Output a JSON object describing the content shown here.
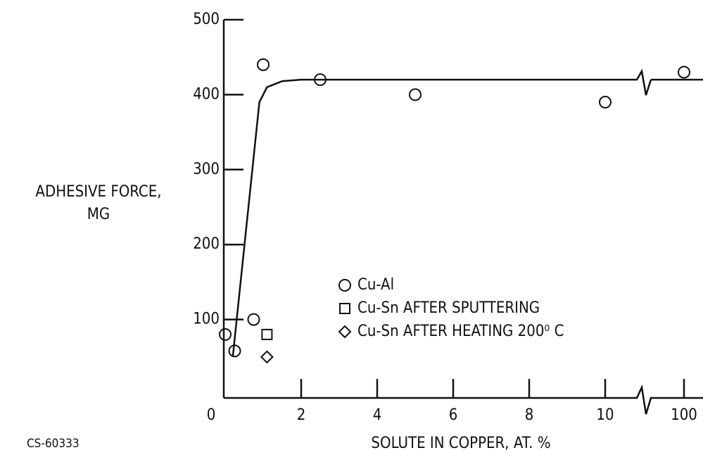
{
  "chart_data": {
    "type": "scatter",
    "y_label": [
      "ADHESIVE FORCE,",
      "MG"
    ],
    "x_label": "SOLUTE IN COPPER, AT. %",
    "note": "CS-60333",
    "xticks": [
      0,
      2,
      4,
      6,
      8,
      10,
      100
    ],
    "x_break": [
      10,
      100
    ],
    "ylim": [
      0,
      500
    ],
    "yticks": [
      100,
      200,
      300,
      400,
      500
    ],
    "series": [
      {
        "name": "Cu-Al",
        "marker": "circle",
        "x": [
          0,
          0.25,
          0.75,
          1,
          2.5,
          5,
          10,
          100
        ],
        "values": [
          80,
          58,
          100,
          440,
          420,
          400,
          390,
          430
        ]
      },
      {
        "name": "Cu-Sn AFTER SPUTTERING",
        "marker": "square",
        "x": [
          1.1
        ],
        "values": [
          80
        ]
      },
      {
        "name": "Cu-Sn AFTER HEATING 200⁰ C",
        "marker": "diamond",
        "x": [
          1.1
        ],
        "values": [
          50
        ]
      }
    ],
    "curve": {
      "x": [
        0.2,
        0.9,
        1.1,
        1.5,
        2,
        10,
        null,
        100
      ],
      "values": [
        50,
        390,
        410,
        418,
        420,
        420,
        null,
        420
      ]
    }
  }
}
